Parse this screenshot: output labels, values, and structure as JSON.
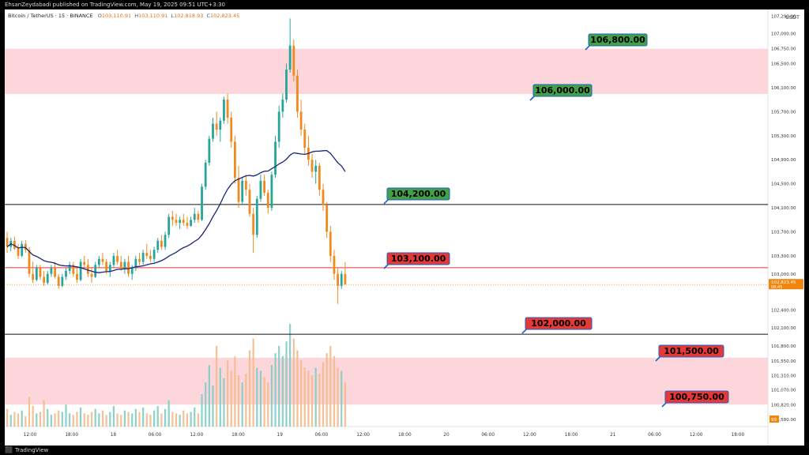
{
  "header": {
    "published_line": "EhsanZeydabadi published on TradingView.com, May 19, 2025 09:51 UTC+3:30"
  },
  "legend": {
    "symbol": "Bitcoin / TetherUS · 15 · BINANCE",
    "o_label": "O",
    "o_value": "103,110.91",
    "h_label": "H",
    "h_value": "103,110.91",
    "l_label": "L",
    "l_value": "102,818.93",
    "c_label": "C",
    "c_value": "102,823.45"
  },
  "currency": "USDT",
  "footer": {
    "brand": "TradingView"
  },
  "volume_badge": "99",
  "chart_data": {
    "type": "candlestick",
    "y_axis": {
      "ylim": [
        100460,
        107400
      ],
      "tick_labels": [
        "107,290.00",
        "107,000.00",
        "106,750.00",
        "106,500.00",
        "106,100.00",
        "105,700.00",
        "105,300.00",
        "104,900.00",
        "104,500.00",
        "104,100.00",
        "103,700.00",
        "103,300.00",
        "103,000.00",
        "102,400.00",
        "102,100.00",
        "101,800.00",
        "101,550.00",
        "101,310.00",
        "101,070.00",
        "100,820.00",
        "100,580.00"
      ]
    },
    "x_axis": {
      "tick_labels": [
        "12:00",
        "18:00",
        "18",
        "06:00",
        "12:00",
        "18:00",
        "19",
        "06:00",
        "12:00",
        "18:00",
        "20",
        "06:00",
        "12:00",
        "18:00",
        "21",
        "06:00",
        "12:00",
        "18:00"
      ]
    },
    "current_price": {
      "value": "102,823.45",
      "sub": "08:45",
      "color": "#f0860c"
    },
    "zones": [
      {
        "name": "upper-supply-zone",
        "from": 105993,
        "to": 106746,
        "color": "#fcd6da"
      },
      {
        "name": "lower-demand-zone",
        "from": 100826,
        "to": 101605,
        "color": "#fcd6da"
      }
    ],
    "levels": [
      {
        "value": 104155,
        "color": "#111111"
      },
      {
        "value": 103104,
        "color": "#e53935"
      },
      {
        "value": 101996,
        "color": "#111111"
      }
    ],
    "annotations": [
      {
        "label": "106,800.00",
        "price": 106800,
        "color": "#43a047"
      },
      {
        "label": "106,000.00",
        "price": 106000,
        "color": "#43a047"
      },
      {
        "label": "104,200.00",
        "price": 104200,
        "color": "#43a047"
      },
      {
        "label": "103,100.00",
        "price": 103100,
        "color": "#e53935"
      },
      {
        "label": "102,000.00",
        "price": 102000,
        "color": "#e53935"
      },
      {
        "label": "101,500.00",
        "price": 101500,
        "color": "#e53935"
      },
      {
        "label": "100,750.00",
        "price": 100750,
        "color": "#e53935"
      }
    ],
    "colors": {
      "up": "#26a69a",
      "down": "#ef8a1f",
      "ma": "#1a237e",
      "volume_up": "#7fcdc4",
      "volume_down": "#f5b98a"
    },
    "candles": [
      [
        103600,
        103700,
        103350,
        103450
      ],
      [
        103450,
        103600,
        103380,
        103550
      ],
      [
        103550,
        103620,
        103400,
        103420
      ],
      [
        103420,
        103500,
        103250,
        103300
      ],
      [
        103300,
        103550,
        103280,
        103500
      ],
      [
        103500,
        103560,
        103350,
        103400
      ],
      [
        103400,
        103450,
        102950,
        103000
      ],
      [
        103000,
        103200,
        102850,
        102900
      ],
      [
        102900,
        103150,
        102880,
        103100
      ],
      [
        103100,
        103150,
        102900,
        102950
      ],
      [
        102950,
        103050,
        102800,
        102850
      ],
      [
        102850,
        103050,
        102820,
        103000
      ],
      [
        103000,
        103150,
        102950,
        103100
      ],
      [
        103100,
        103200,
        102920,
        102950
      ],
      [
        102950,
        103000,
        102750,
        102800
      ],
      [
        102800,
        103000,
        102780,
        102950
      ],
      [
        102950,
        103100,
        102900,
        103050
      ],
      [
        103050,
        103200,
        103000,
        103150
      ],
      [
        103150,
        103200,
        102950,
        103000
      ],
      [
        103000,
        103100,
        102850,
        102900
      ],
      [
        102900,
        103250,
        102880,
        103200
      ],
      [
        103200,
        103300,
        103100,
        103150
      ],
      [
        103150,
        103250,
        102950,
        103000
      ],
      [
        103000,
        103100,
        102850,
        102950
      ],
      [
        102950,
        103200,
        102930,
        103150
      ],
      [
        103150,
        103300,
        103100,
        103250
      ],
      [
        103250,
        103350,
        103150,
        103200
      ],
      [
        103200,
        103250,
        103000,
        103050
      ],
      [
        103050,
        103200,
        102950,
        103150
      ],
      [
        103150,
        103350,
        103100,
        103300
      ],
      [
        103300,
        103400,
        103150,
        103200
      ],
      [
        103200,
        103300,
        103050,
        103100
      ],
      [
        103100,
        103250,
        103000,
        103200
      ],
      [
        103200,
        103300,
        102950,
        103000
      ],
      [
        103000,
        103150,
        102900,
        103100
      ],
      [
        103100,
        103300,
        103050,
        103250
      ],
      [
        103250,
        103350,
        103150,
        103200
      ],
      [
        103200,
        103400,
        103150,
        103350
      ],
      [
        103350,
        103500,
        103250,
        103300
      ],
      [
        103300,
        103400,
        103200,
        103250
      ],
      [
        103250,
        103450,
        103200,
        103400
      ],
      [
        103400,
        103600,
        103350,
        103550
      ],
      [
        103550,
        103650,
        103400,
        103450
      ],
      [
        103450,
        103700,
        103400,
        103650
      ],
      [
        103650,
        104000,
        103600,
        103950
      ],
      [
        103950,
        104050,
        103800,
        103900
      ],
      [
        103900,
        104000,
        103800,
        103850
      ],
      [
        103850,
        103950,
        103750,
        103900
      ],
      [
        103900,
        104000,
        103800,
        103850
      ],
      [
        103850,
        103950,
        103750,
        103800
      ],
      [
        103800,
        103950,
        103780,
        103900
      ],
      [
        103900,
        104100,
        103850,
        104000
      ],
      [
        104000,
        104050,
        103850,
        103900
      ],
      [
        103900,
        104500,
        103880,
        104450
      ],
      [
        104450,
        104900,
        104400,
        104850
      ],
      [
        104850,
        105300,
        104800,
        105250
      ],
      [
        105250,
        105600,
        105200,
        105500
      ],
      [
        105500,
        105700,
        105300,
        105400
      ],
      [
        105400,
        105600,
        105200,
        105550
      ],
      [
        105550,
        105950,
        105500,
        105900
      ],
      [
        105900,
        106000,
        105500,
        105600
      ],
      [
        105600,
        105700,
        105100,
        105200
      ],
      [
        105200,
        105300,
        104500,
        104600
      ],
      [
        104600,
        104800,
        104100,
        104200
      ],
      [
        104200,
        104600,
        104150,
        104550
      ],
      [
        104550,
        104650,
        104300,
        104400
      ],
      [
        104400,
        104500,
        103950,
        104000
      ],
      [
        104000,
        104100,
        103350,
        103650
      ],
      [
        103650,
        104300,
        103600,
        104250
      ],
      [
        104250,
        104650,
        104200,
        104550
      ],
      [
        104550,
        104650,
        104300,
        104350
      ],
      [
        104350,
        104400,
        104000,
        104100
      ],
      [
        104100,
        104700,
        104050,
        104650
      ],
      [
        104650,
        105300,
        104600,
        105200
      ],
      [
        105200,
        105800,
        105100,
        105700
      ],
      [
        105700,
        106000,
        105600,
        105900
      ],
      [
        105900,
        106500,
        105850,
        106400
      ],
      [
        106400,
        107250,
        106350,
        106800
      ],
      [
        106800,
        106900,
        106200,
        106300
      ],
      [
        106300,
        106400,
        105600,
        105700
      ],
      [
        105700,
        105900,
        105300,
        105400
      ],
      [
        105400,
        105500,
        105000,
        105100
      ],
      [
        105100,
        105300,
        104800,
        104900
      ],
      [
        104900,
        105000,
        104600,
        104700
      ],
      [
        104700,
        104900,
        104500,
        104800
      ],
      [
        104800,
        104850,
        104300,
        104400
      ],
      [
        104400,
        104500,
        104050,
        104150
      ],
      [
        104150,
        104200,
        103600,
        103700
      ],
      [
        103700,
        103800,
        103200,
        103300
      ],
      [
        103300,
        103400,
        102900,
        103000
      ],
      [
        103000,
        103100,
        102500,
        102800
      ],
      [
        102800,
        103050,
        102750,
        103000
      ],
      [
        103000,
        103200,
        102850,
        102823
      ]
    ],
    "volumes": [
      12,
      8,
      10,
      9,
      11,
      7,
      20,
      14,
      9,
      10,
      18,
      12,
      8,
      9,
      11,
      10,
      15,
      9,
      8,
      10,
      13,
      9,
      8,
      10,
      12,
      9,
      11,
      8,
      10,
      14,
      9,
      8,
      11,
      10,
      9,
      12,
      10,
      13,
      9,
      8,
      11,
      14,
      9,
      12,
      18,
      10,
      9,
      8,
      11,
      9,
      10,
      13,
      9,
      22,
      30,
      42,
      28,
      55,
      40,
      33,
      45,
      38,
      48,
      35,
      30,
      36,
      52,
      60,
      40,
      38,
      34,
      30,
      42,
      50,
      55,
      48,
      58,
      70,
      60,
      52,
      45,
      40,
      38,
      35,
      40,
      36,
      44,
      50,
      55,
      48,
      40,
      38,
      30
    ]
  }
}
